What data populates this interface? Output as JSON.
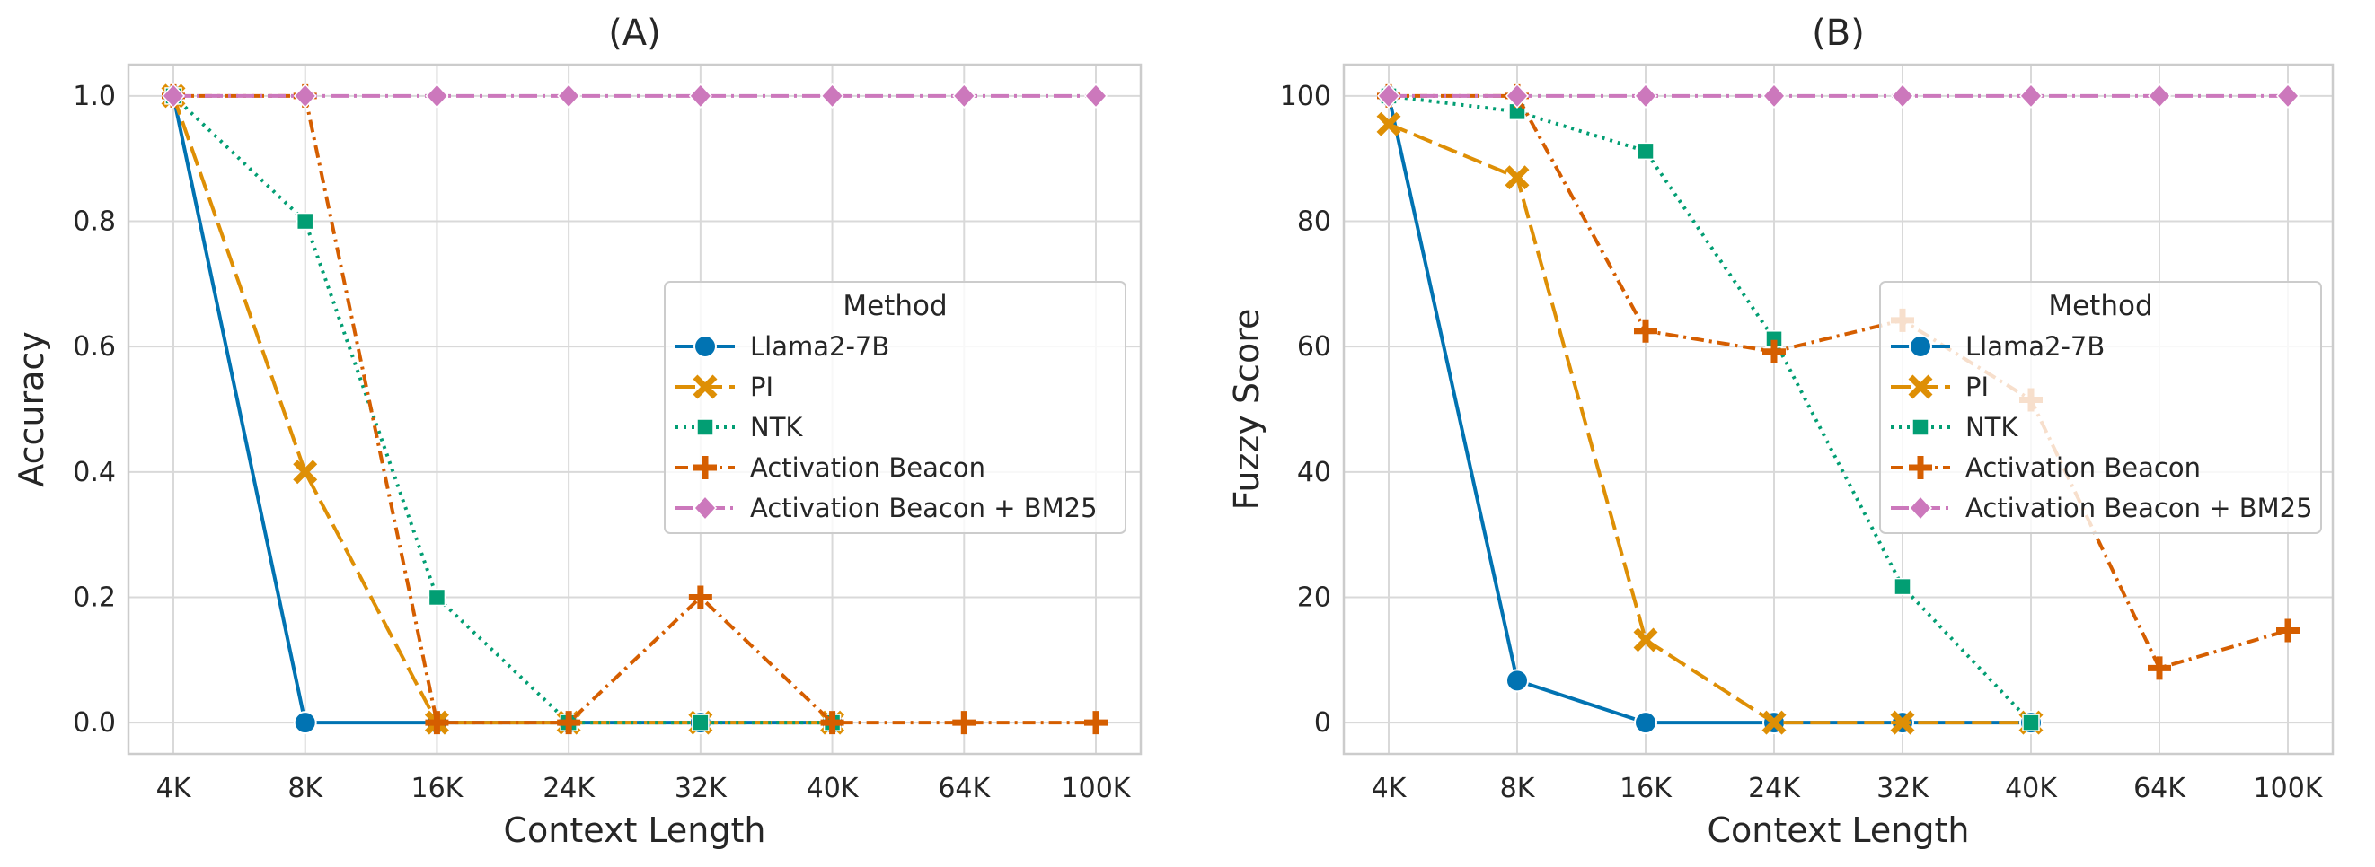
{
  "chart_data": [
    {
      "type": "line",
      "title": "(A)",
      "xlabel": "Context Length",
      "ylabel": "Accuracy",
      "categories": [
        "4K",
        "8K",
        "16K",
        "24K",
        "32K",
        "40K",
        "64K",
        "100K"
      ],
      "ylim": [
        -0.05,
        1.05
      ],
      "yticks": [
        "0.0",
        "0.2",
        "0.4",
        "0.6",
        "0.8",
        "1.0"
      ],
      "ytick_values": [
        0,
        0.2,
        0.4,
        0.6,
        0.8,
        1.0
      ],
      "grid": true,
      "legend": {
        "title": "Method",
        "placement": "center-right"
      },
      "series": [
        {
          "name": "Llama2-7B",
          "values": [
            1.0,
            0.0,
            0.0,
            0.0,
            0.0,
            0.0,
            null,
            null
          ]
        },
        {
          "name": "PI",
          "values": [
            1.0,
            0.4,
            0.0,
            0.0,
            0.0,
            0.0,
            null,
            null
          ]
        },
        {
          "name": "NTK",
          "values": [
            1.0,
            0.8,
            0.2,
            0.0,
            0.0,
            0.0,
            null,
            null
          ]
        },
        {
          "name": "Activation Beacon",
          "values": [
            1.0,
            1.0,
            0.0,
            0.0,
            0.2,
            0.0,
            0.0,
            0.0
          ]
        },
        {
          "name": "Activation Beacon + BM25",
          "values": [
            1.0,
            1.0,
            1.0,
            1.0,
            1.0,
            1.0,
            1.0,
            1.0
          ]
        }
      ]
    },
    {
      "type": "line",
      "title": "(B)",
      "xlabel": "Context Length",
      "ylabel": "Fuzzy Score",
      "categories": [
        "4K",
        "8K",
        "16K",
        "24K",
        "32K",
        "40K",
        "64K",
        "100K"
      ],
      "ylim": [
        -5,
        105
      ],
      "yticks": [
        "0",
        "20",
        "40",
        "60",
        "80",
        "100"
      ],
      "ytick_values": [
        0,
        20,
        40,
        60,
        80,
        100
      ],
      "grid": true,
      "legend": {
        "title": "Method",
        "placement": "center-right"
      },
      "series": [
        {
          "name": "Llama2-7B",
          "values": [
            100,
            6.7,
            0,
            0,
            0,
            0,
            null,
            null
          ]
        },
        {
          "name": "PI",
          "values": [
            95.5,
            87,
            13.2,
            0,
            0,
            0,
            null,
            null
          ]
        },
        {
          "name": "NTK",
          "values": [
            100,
            97.5,
            91.2,
            61.2,
            21.7,
            0,
            null,
            null
          ]
        },
        {
          "name": "Activation Beacon",
          "values": [
            100,
            100,
            62.5,
            59.2,
            64.2,
            51.5,
            8.7,
            14.7
          ]
        },
        {
          "name": "Activation Beacon + BM25",
          "values": [
            100,
            100,
            100,
            100,
            100,
            100,
            100,
            100
          ]
        }
      ]
    }
  ],
  "style": {
    "colors": [
      "#0173b2",
      "#de8f05",
      "#029e73",
      "#d55e00",
      "#cc78bc"
    ],
    "markers": [
      "circle",
      "x",
      "square",
      "plus",
      "diamond"
    ],
    "dashes": [
      "",
      "22 8",
      "3 6",
      "14 6 3 6",
      "20 6 3 6"
    ]
  }
}
